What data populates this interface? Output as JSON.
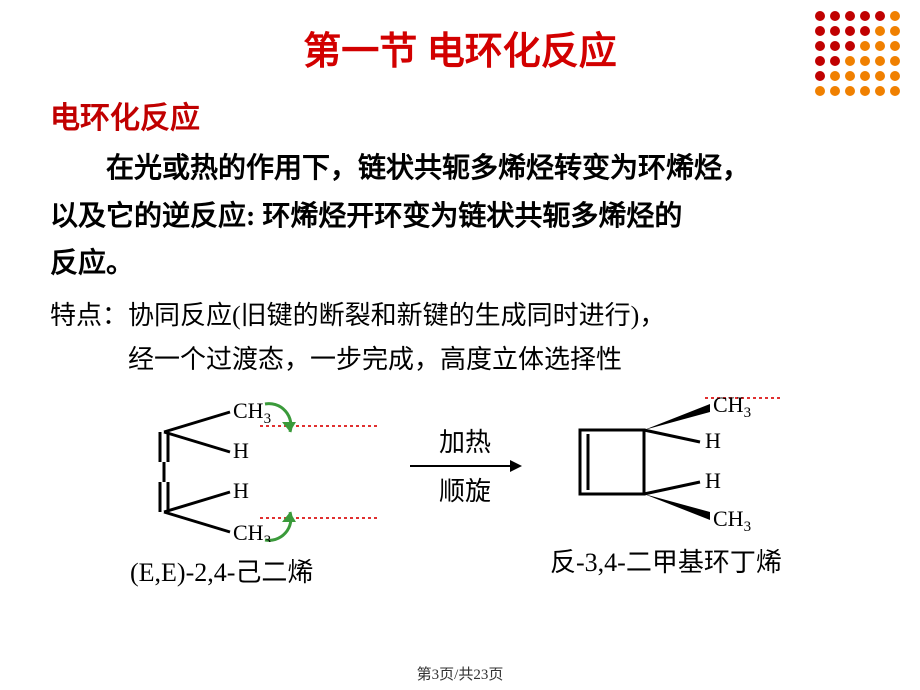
{
  "colors": {
    "title_red": "#d20000",
    "sub_red": "#c00000",
    "text_black": "#000000",
    "dot_red": "#c00000",
    "dot_orange": "#f08000",
    "dotted_red": "#e03030",
    "arrow_green": "#3a9a3a"
  },
  "title": "第一节    电环化反应",
  "subtitle": "电环化反应",
  "para1_line1": "在光或热的作用下，链状共轭多烯烃转变为环烯烃，",
  "para1_line2": "以及它的逆反应:  环烯烃开环变为链状共轭多烯烃的",
  "para1_line3": "反应。",
  "para2_line1": "特点：协同反应(旧键的断裂和新键的生成同时进行)，",
  "para2_line2": "经一个过渡态，一步完成，高度立体选择性",
  "reaction": {
    "arrow_top": "加热",
    "arrow_bottom": "顺旋",
    "reactant_label": "(E,E)-2,4-己二烯",
    "product_label": "反-3,4-二甲基环丁烯",
    "ch3": "CH",
    "ch3_sub": "3",
    "h": "H"
  },
  "footer": "第3页/共23页",
  "decoration": {
    "rows": 6,
    "cols": 6,
    "spacing": 15,
    "radius": 5
  }
}
